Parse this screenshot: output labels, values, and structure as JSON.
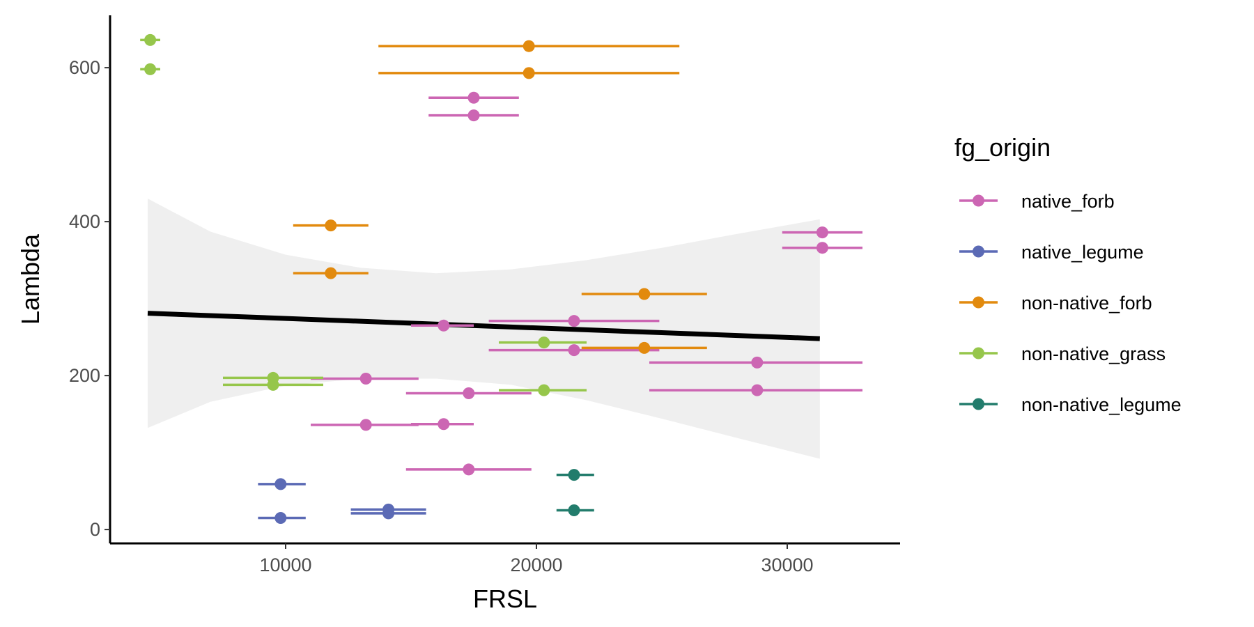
{
  "chart_data": {
    "type": "scatter",
    "title": "",
    "xlabel": "FRSL",
    "ylabel": "Lambda",
    "xlim": [
      3000,
      34500
    ],
    "ylim": [
      -18,
      668
    ],
    "x_ticks": [
      {
        "value": 10000,
        "label": "10000"
      },
      {
        "value": 20000,
        "label": "20000"
      },
      {
        "value": 30000,
        "label": "30000"
      }
    ],
    "y_ticks": [
      {
        "value": 0,
        "label": "0"
      },
      {
        "value": 200,
        "label": "200"
      },
      {
        "value": 400,
        "label": "400"
      },
      {
        "value": 600,
        "label": "600"
      }
    ],
    "grid": false,
    "legend": {
      "title": "fg_origin",
      "placement": "right",
      "entries": [
        {
          "label": "native_forb",
          "color": "#CC66B3"
        },
        {
          "label": "native_legume",
          "color": "#5B6AB5"
        },
        {
          "label": "non-native_forb",
          "color": "#E28A0E"
        },
        {
          "label": "non-native_grass",
          "color": "#96C64B"
        },
        {
          "label": "non-native_legume",
          "color": "#227C6C"
        }
      ]
    },
    "trend_line": {
      "x": [
        4500,
        31300
      ],
      "y": [
        281,
        248
      ],
      "color": "#000000"
    },
    "confidence_band": {
      "x": [
        4500,
        7000,
        10000,
        13000,
        16000,
        19000,
        22000,
        25000,
        28000,
        31300
      ],
      "upper": [
        430,
        387,
        357,
        340,
        333,
        338,
        350,
        366,
        384,
        403
      ],
      "lower": [
        132,
        166,
        187,
        196,
        196,
        188,
        168,
        144,
        119,
        92
      ],
      "color": "#EFEFEF"
    },
    "series": [
      {
        "name": "native_forb",
        "color": "#CC66B3",
        "points": [
          {
            "x": 17500,
            "y": 561,
            "xmin": 15700,
            "xmax": 19300
          },
          {
            "x": 17500,
            "y": 538,
            "xmin": 15700,
            "xmax": 19300
          },
          {
            "x": 31400,
            "y": 386,
            "xmin": 29800,
            "xmax": 33000
          },
          {
            "x": 31400,
            "y": 366,
            "xmin": 29800,
            "xmax": 33000
          },
          {
            "x": 21500,
            "y": 271,
            "xmin": 18100,
            "xmax": 24900
          },
          {
            "x": 16300,
            "y": 265,
            "xmin": 15000,
            "xmax": 17500
          },
          {
            "x": 21500,
            "y": 233,
            "xmin": 18100,
            "xmax": 24900
          },
          {
            "x": 28800,
            "y": 217,
            "xmin": 24500,
            "xmax": 33000
          },
          {
            "x": 13200,
            "y": 196,
            "xmin": 11000,
            "xmax": 15300
          },
          {
            "x": 28800,
            "y": 181,
            "xmin": 24500,
            "xmax": 33000
          },
          {
            "x": 17300,
            "y": 177,
            "xmin": 14800,
            "xmax": 19800
          },
          {
            "x": 16300,
            "y": 137,
            "xmin": 15000,
            "xmax": 17500
          },
          {
            "x": 13200,
            "y": 136,
            "xmin": 11000,
            "xmax": 15300
          },
          {
            "x": 17300,
            "y": 78,
            "xmin": 14800,
            "xmax": 19800
          }
        ]
      },
      {
        "name": "native_legume",
        "color": "#5B6AB5",
        "points": [
          {
            "x": 9800,
            "y": 59,
            "xmin": 8900,
            "xmax": 10800
          },
          {
            "x": 14100,
            "y": 26,
            "xmin": 12600,
            "xmax": 15600
          },
          {
            "x": 14100,
            "y": 21,
            "xmin": 12600,
            "xmax": 15600
          },
          {
            "x": 9800,
            "y": 15,
            "xmin": 8900,
            "xmax": 10800
          }
        ]
      },
      {
        "name": "non-native_forb",
        "color": "#E28A0E",
        "points": [
          {
            "x": 19700,
            "y": 628,
            "xmin": 13700,
            "xmax": 25700
          },
          {
            "x": 19700,
            "y": 593,
            "xmin": 13700,
            "xmax": 25700
          },
          {
            "x": 11800,
            "y": 395,
            "xmin": 10300,
            "xmax": 13300
          },
          {
            "x": 11800,
            "y": 333,
            "xmin": 10300,
            "xmax": 13300
          },
          {
            "x": 24300,
            "y": 306,
            "xmin": 21800,
            "xmax": 26800
          },
          {
            "x": 24300,
            "y": 236,
            "xmin": 21800,
            "xmax": 26800
          }
        ]
      },
      {
        "name": "non-native_grass",
        "color": "#96C64B",
        "points": [
          {
            "x": 4600,
            "y": 636,
            "xmin": 4200,
            "xmax": 5000
          },
          {
            "x": 4600,
            "y": 598,
            "xmin": 4200,
            "xmax": 5000
          },
          {
            "x": 20300,
            "y": 243,
            "xmin": 18500,
            "xmax": 22000
          },
          {
            "x": 9500,
            "y": 197,
            "xmin": 7500,
            "xmax": 11500
          },
          {
            "x": 9500,
            "y": 188,
            "xmin": 7500,
            "xmax": 11500
          },
          {
            "x": 20300,
            "y": 181,
            "xmin": 18500,
            "xmax": 22000
          }
        ]
      },
      {
        "name": "non-native_legume",
        "color": "#227C6C",
        "points": [
          {
            "x": 21500,
            "y": 71,
            "xmin": 20800,
            "xmax": 22300
          },
          {
            "x": 21500,
            "y": 25,
            "xmin": 20800,
            "xmax": 22300
          }
        ]
      }
    ]
  }
}
